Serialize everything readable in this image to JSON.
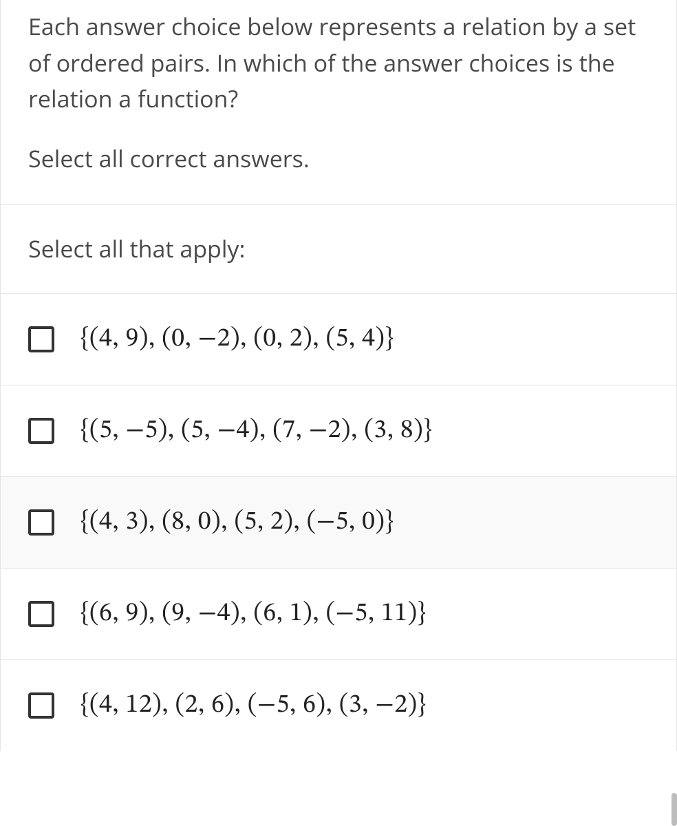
{
  "question": {
    "paragraph1": "Each answer choice below represents a relation by a set of ordered pairs. In which of the answer choices is the relation a function?",
    "paragraph2": "Select all correct answers."
  },
  "instruction": "Select all that apply:",
  "options": [
    {
      "label": "{(4, 9), (0, −2), (0, 2), (5, 4)}",
      "checked": false,
      "highlight": false
    },
    {
      "label": "{(5, −5), (5, −4), (7, −2), (3, 8)}",
      "checked": false,
      "highlight": false
    },
    {
      "label": "{(4, 3), (8, 0), (5, 2), (−5, 0)}",
      "checked": false,
      "highlight": true
    },
    {
      "label": "{(6, 9), (9, −4), (6, 1), (−5, 11)}",
      "checked": false,
      "highlight": false
    },
    {
      "label": "{(4, 12), (2, 6), (−5, 6), (3, −2)}",
      "checked": false,
      "highlight": false
    }
  ],
  "colors": {
    "border": "#e5e5e5",
    "text": "#4a4a4a",
    "math": "#222222",
    "checkbox_border": "#333333",
    "highlight_bg": "#f9f9f9",
    "background": "#ffffff"
  }
}
